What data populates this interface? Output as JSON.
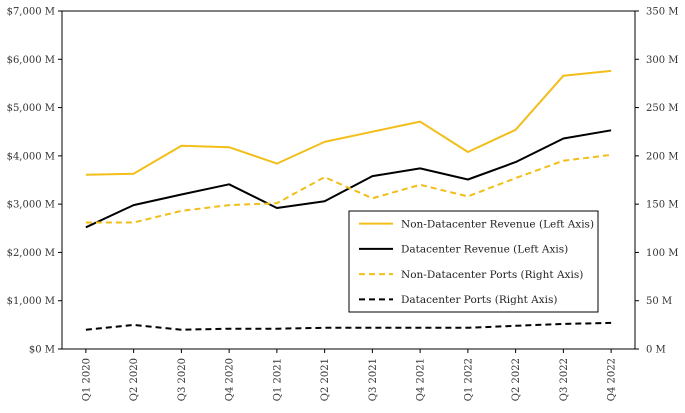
{
  "chart_data": {
    "type": "line",
    "title": "",
    "xlabel": "",
    "ylabel": "",
    "y2label": "",
    "categories": [
      "Q1 2020",
      "Q2 2020",
      "Q3 2020",
      "Q4 2020",
      "Q1 2021",
      "Q2 2021",
      "Q3 2021",
      "Q4 2021",
      "Q1 2022",
      "Q2 2022",
      "Q3 2022",
      "Q4 2022"
    ],
    "ylim": [
      0,
      7000
    ],
    "y2lim": [
      0,
      350
    ],
    "y_ticks": [
      0,
      1000,
      2000,
      3000,
      4000,
      5000,
      6000,
      7000
    ],
    "y_tick_labels": [
      "$0 M",
      "$1,000 M",
      "$2,000 M",
      "$3,000 M",
      "$4,000 M",
      "$5,000 M",
      "$6,000 M",
      "$7,000 M"
    ],
    "y2_ticks": [
      0,
      50,
      100,
      150,
      200,
      250,
      300,
      350
    ],
    "y2_tick_labels": [
      "0 M",
      "50 M",
      "100 M",
      "150 M",
      "200 M",
      "250 M",
      "300 M",
      "350 M"
    ],
    "grid": false,
    "legend_position": "center-right",
    "series": [
      {
        "name": "Non-Datacenter Revenue (Left Axis)",
        "axis": "left",
        "color": "#F2BE1A",
        "dash": "solid",
        "values": [
          3610,
          3630,
          4210,
          4180,
          3840,
          4290,
          4500,
          4710,
          4080,
          4540,
          5660,
          5760
        ]
      },
      {
        "name": "Datacenter Revenue (Left Axis)",
        "axis": "left",
        "color": "#000000",
        "dash": "solid",
        "values": [
          2520,
          2980,
          3200,
          3410,
          2920,
          3060,
          3580,
          3740,
          3510,
          3870,
          4360,
          4530
        ]
      },
      {
        "name": "Non-Datacenter Ports (Right Axis)",
        "axis": "right",
        "color": "#F2BE1A",
        "dash": "dashed",
        "values": [
          131,
          131,
          143,
          149,
          151,
          178,
          156,
          170,
          158,
          177,
          195,
          201
        ]
      },
      {
        "name": "Datacenter Ports (Right Axis)",
        "axis": "right",
        "color": "#000000",
        "dash": "dashed",
        "values": [
          20,
          25,
          20,
          21,
          21,
          22,
          22,
          22,
          22,
          24,
          26,
          27
        ]
      }
    ]
  }
}
